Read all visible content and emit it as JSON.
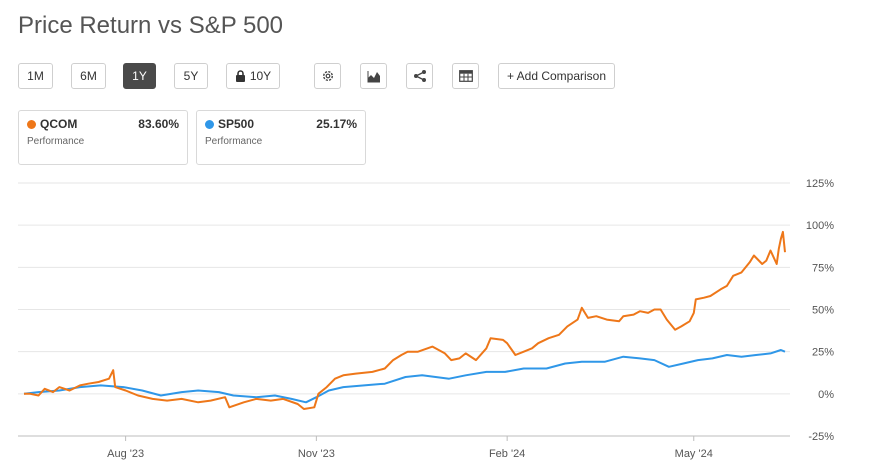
{
  "page": {
    "title": "Price Return vs S&P 500"
  },
  "toolbar": {
    "ranges": [
      {
        "label": "1M",
        "active": false
      },
      {
        "label": "6M",
        "active": false
      },
      {
        "label": "1Y",
        "active": true
      },
      {
        "label": "5Y",
        "active": false
      },
      {
        "label": "10Y",
        "active": false,
        "locked": true
      }
    ],
    "icons": [
      "gear-icon",
      "area-chart-icon",
      "share-icon",
      "table-icon"
    ],
    "add_comparison_label": "+ Add Comparison"
  },
  "legend_cards": [
    {
      "ticker": "QCOM",
      "value": "83.60%",
      "sub": "Performance",
      "color": "#ee7719"
    },
    {
      "ticker": "SP500",
      "value": "25.17%",
      "sub": "Performance",
      "color": "#2f97e8"
    }
  ],
  "chart_data": {
    "type": "line",
    "title": "Price Return vs S&P 500",
    "xlabel": "",
    "ylabel": "",
    "x_ticks": [
      "Aug '23",
      "Nov '23",
      "Feb '24",
      "May '24"
    ],
    "y_ticks": [
      "125%",
      "100%",
      "75%",
      "50%",
      "25%",
      "0%",
      "-25%"
    ],
    "y_tick_values": [
      125,
      100,
      75,
      50,
      25,
      0,
      -25
    ],
    "ylim": [
      -25,
      125
    ],
    "xlim": [
      "2023-06-13",
      "2024-06-14"
    ],
    "grid": true,
    "series": [
      {
        "name": "QCOM",
        "color": "#ee7719",
        "points": [
          [
            "2023-06-13",
            0
          ],
          [
            "2023-06-16",
            0
          ],
          [
            "2023-06-20",
            -1
          ],
          [
            "2023-06-23",
            3
          ],
          [
            "2023-06-27",
            1
          ],
          [
            "2023-06-30",
            4
          ],
          [
            "2023-07-05",
            2
          ],
          [
            "2023-07-10",
            5
          ],
          [
            "2023-07-14",
            6
          ],
          [
            "2023-07-19",
            7
          ],
          [
            "2023-07-24",
            9
          ],
          [
            "2023-07-26",
            14
          ],
          [
            "2023-07-27",
            4
          ],
          [
            "2023-08-01",
            2
          ],
          [
            "2023-08-07",
            -1
          ],
          [
            "2023-08-14",
            -3
          ],
          [
            "2023-08-21",
            -4
          ],
          [
            "2023-08-28",
            -3
          ],
          [
            "2023-09-05",
            -5
          ],
          [
            "2023-09-11",
            -4
          ],
          [
            "2023-09-18",
            -2
          ],
          [
            "2023-09-20",
            -8
          ],
          [
            "2023-09-27",
            -5
          ],
          [
            "2023-10-03",
            -3
          ],
          [
            "2023-10-10",
            -4
          ],
          [
            "2023-10-16",
            -3
          ],
          [
            "2023-10-23",
            -6
          ],
          [
            "2023-10-26",
            -9
          ],
          [
            "2023-10-31",
            -8
          ],
          [
            "2023-11-02",
            0
          ],
          [
            "2023-11-06",
            4
          ],
          [
            "2023-11-10",
            9
          ],
          [
            "2023-11-14",
            11
          ],
          [
            "2023-11-20",
            12
          ],
          [
            "2023-11-28",
            13
          ],
          [
            "2023-12-04",
            15
          ],
          [
            "2023-12-08",
            20
          ],
          [
            "2023-12-12",
            23
          ],
          [
            "2023-12-15",
            25
          ],
          [
            "2023-12-20",
            25
          ],
          [
            "2023-12-27",
            28
          ],
          [
            "2024-01-02",
            24
          ],
          [
            "2024-01-05",
            20
          ],
          [
            "2024-01-09",
            21
          ],
          [
            "2024-01-12",
            24
          ],
          [
            "2024-01-17",
            20
          ],
          [
            "2024-01-22",
            27
          ],
          [
            "2024-01-24",
            33
          ],
          [
            "2024-01-30",
            32
          ],
          [
            "2024-02-01",
            30
          ],
          [
            "2024-02-05",
            23
          ],
          [
            "2024-02-09",
            25
          ],
          [
            "2024-02-13",
            27
          ],
          [
            "2024-02-16",
            30
          ],
          [
            "2024-02-21",
            33
          ],
          [
            "2024-02-26",
            35
          ],
          [
            "2024-03-01",
            40
          ],
          [
            "2024-03-06",
            44
          ],
          [
            "2024-03-08",
            51
          ],
          [
            "2024-03-11",
            45
          ],
          [
            "2024-03-15",
            46
          ],
          [
            "2024-03-20",
            44
          ],
          [
            "2024-03-26",
            43
          ],
          [
            "2024-03-28",
            46
          ],
          [
            "2024-04-02",
            47
          ],
          [
            "2024-04-05",
            49
          ],
          [
            "2024-04-09",
            48
          ],
          [
            "2024-04-12",
            50
          ],
          [
            "2024-04-15",
            50
          ],
          [
            "2024-04-18",
            44
          ],
          [
            "2024-04-22",
            38
          ],
          [
            "2024-04-25",
            40
          ],
          [
            "2024-04-29",
            43
          ],
          [
            "2024-05-01",
            48
          ],
          [
            "2024-05-02",
            56
          ],
          [
            "2024-05-06",
            57
          ],
          [
            "2024-05-09",
            58
          ],
          [
            "2024-05-14",
            62
          ],
          [
            "2024-05-17",
            64
          ],
          [
            "2024-05-20",
            70
          ],
          [
            "2024-05-24",
            72
          ],
          [
            "2024-05-28",
            78
          ],
          [
            "2024-05-30",
            82
          ],
          [
            "2024-06-03",
            77
          ],
          [
            "2024-06-05",
            79
          ],
          [
            "2024-06-07",
            85
          ],
          [
            "2024-06-10",
            77
          ],
          [
            "2024-06-11",
            86
          ],
          [
            "2024-06-12",
            92
          ],
          [
            "2024-06-13",
            96
          ],
          [
            "2024-06-14",
            84
          ]
        ]
      },
      {
        "name": "SP500",
        "color": "#2f97e8",
        "points": [
          [
            "2023-06-13",
            0
          ],
          [
            "2023-06-20",
            1
          ],
          [
            "2023-06-30",
            2
          ],
          [
            "2023-07-10",
            4
          ],
          [
            "2023-07-20",
            5
          ],
          [
            "2023-07-31",
            4
          ],
          [
            "2023-08-09",
            2
          ],
          [
            "2023-08-18",
            -1
          ],
          [
            "2023-08-28",
            1
          ],
          [
            "2023-09-05",
            2
          ],
          [
            "2023-09-15",
            1
          ],
          [
            "2023-09-22",
            -1
          ],
          [
            "2023-10-03",
            -2
          ],
          [
            "2023-10-12",
            -1
          ],
          [
            "2023-10-20",
            -3
          ],
          [
            "2023-10-27",
            -5
          ],
          [
            "2023-11-01",
            -2
          ],
          [
            "2023-11-07",
            2
          ],
          [
            "2023-11-14",
            4
          ],
          [
            "2023-11-24",
            5
          ],
          [
            "2023-12-04",
            6
          ],
          [
            "2023-12-14",
            10
          ],
          [
            "2023-12-22",
            11
          ],
          [
            "2024-01-04",
            9
          ],
          [
            "2024-01-12",
            11
          ],
          [
            "2024-01-22",
            13
          ],
          [
            "2024-01-31",
            13
          ],
          [
            "2024-02-09",
            15
          ],
          [
            "2024-02-20",
            15
          ],
          [
            "2024-02-29",
            18
          ],
          [
            "2024-03-08",
            19
          ],
          [
            "2024-03-19",
            19
          ],
          [
            "2024-03-28",
            22
          ],
          [
            "2024-04-05",
            21
          ],
          [
            "2024-04-12",
            20
          ],
          [
            "2024-04-19",
            16
          ],
          [
            "2024-04-26",
            18
          ],
          [
            "2024-05-03",
            20
          ],
          [
            "2024-05-10",
            21
          ],
          [
            "2024-05-17",
            23
          ],
          [
            "2024-05-24",
            22
          ],
          [
            "2024-05-31",
            23
          ],
          [
            "2024-06-07",
            24
          ],
          [
            "2024-06-12",
            26
          ],
          [
            "2024-06-14",
            25
          ]
        ]
      }
    ]
  }
}
